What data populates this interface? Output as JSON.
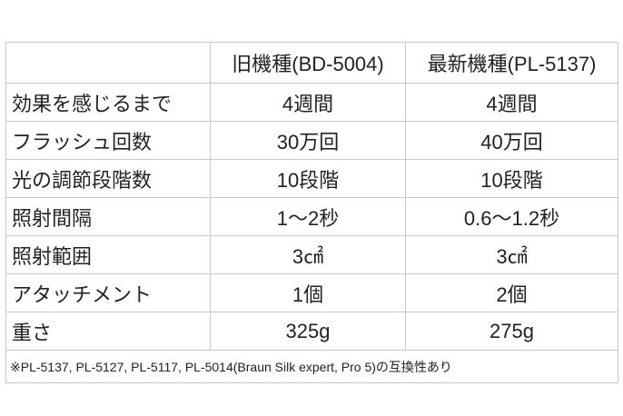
{
  "table": {
    "header": [
      "旧機種(BD-5004)",
      "最新機種(PL-5137)"
    ],
    "rows": [
      [
        "効果を感じるまで",
        "4週間",
        "4週間"
      ],
      [
        "フラッシュ回数",
        "30万回",
        "40万回"
      ],
      [
        "光の調節段階数",
        "10段階",
        "10段階"
      ],
      [
        "照射間隔",
        "1〜2秒",
        "0.6〜1.2秒"
      ],
      [
        "照射範囲",
        "3㎠",
        "3㎠"
      ],
      [
        "アタッチメント",
        "1個",
        "2個"
      ],
      [
        "重さ",
        "325g",
        "275g"
      ]
    ],
    "footnote": "※PL-5137, PL-5127, PL-5117, PL-5014(Braun Silk expert, Pro 5)の互換性あり"
  }
}
